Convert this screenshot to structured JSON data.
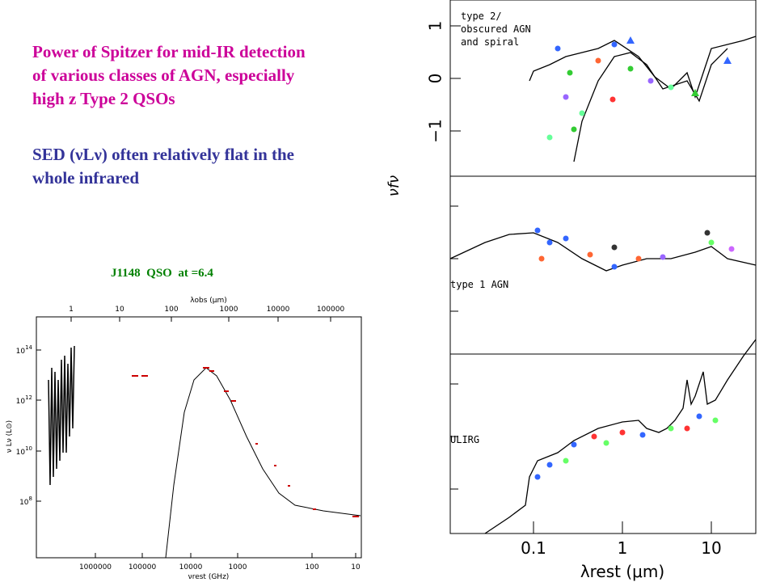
{
  "text": {
    "paragraph1": [
      "Power of Spitzer for mid-IR detection",
      "of various classes of AGN, especially",
      "high z Type 2 QSOs"
    ],
    "paragraph2": [
      "SED (νLν) often relatively flat in the",
      "whole infrared"
    ]
  },
  "left_plot": {
    "caption": "J1148  QSO  at =6.4",
    "top_ticks": [
      "1",
      "10",
      "100",
      "1000",
      "10000",
      "100000"
    ],
    "top_axis_label": "λobs (μm)",
    "bottom_ticks": [
      "1000000",
      "100000",
      "10000",
      "1000",
      "100",
      "10"
    ],
    "bottom_axis_label": "νrest (GHz)",
    "y_ticks": [
      {
        "base": "10",
        "exp": "14"
      },
      {
        "base": "10",
        "exp": "12"
      },
      {
        "base": "10",
        "exp": "10"
      },
      {
        "base": "10",
        "exp": "8"
      }
    ],
    "y_axis_label": "ν Lν (L⊙)"
  },
  "right_plot": {
    "y_ticks": [
      "1",
      "0",
      "−1"
    ],
    "y_axis_label": "νfν",
    "panels": [
      {
        "label": [
          "type 2/",
          "obscured AGN",
          "and spiral"
        ]
      },
      {
        "label": [
          "type 1 AGN"
        ]
      },
      {
        "label": [
          "ULIRG"
        ]
      }
    ],
    "x_ticks": [
      "0.1",
      "1",
      "10"
    ],
    "x_axis_label": "λrest (μm)"
  }
}
